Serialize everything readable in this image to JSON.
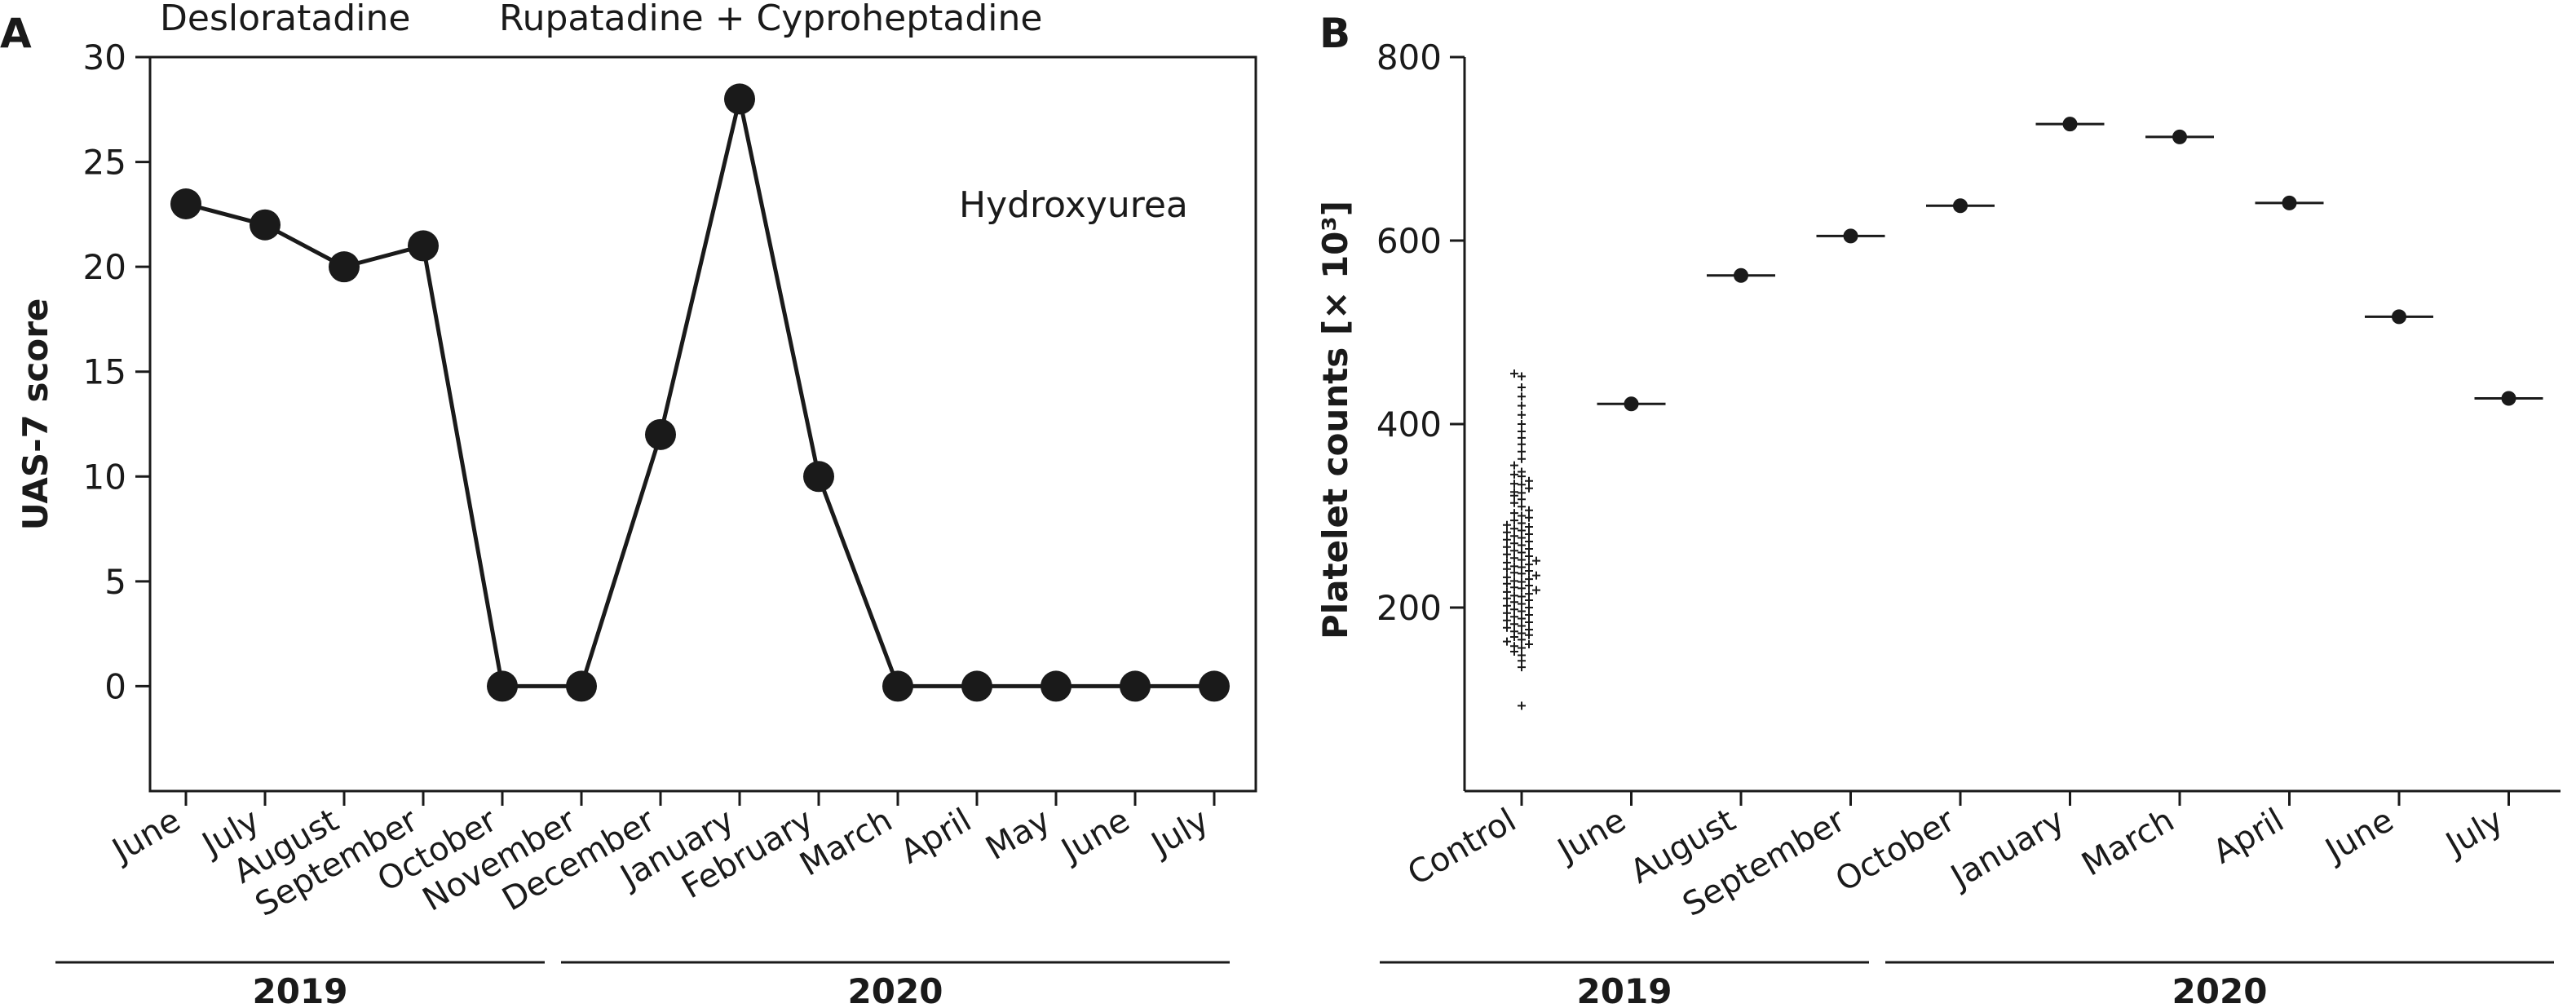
{
  "chart_data": [
    {
      "panel": "A",
      "type": "line",
      "ylabel": "UAS-7 score",
      "xlabel": "",
      "ylim": [
        -5,
        30
      ],
      "yticks": [
        "0",
        "5",
        "10",
        "15",
        "20",
        "25",
        "30"
      ],
      "categories": [
        "June",
        "July",
        "August",
        "September",
        "October",
        "November",
        "December",
        "January",
        "February",
        "March",
        "April",
        "May",
        "June",
        "July"
      ],
      "values": [
        23,
        22,
        20,
        21,
        0,
        0,
        12,
        28,
        10,
        0,
        0,
        0,
        0,
        0
      ],
      "annotations": [
        "Desloratadine",
        "Rupatadine + Cyproheptadine",
        "Hydroxyurea"
      ],
      "years": [
        "2019",
        "2020"
      ]
    },
    {
      "panel": "B",
      "type": "scatter",
      "ylabel": "Platelet counts [× 10³]",
      "xlabel": "",
      "ylim": [
        0,
        800
      ],
      "yticks": [
        "200",
        "400",
        "600",
        "800"
      ],
      "categories": [
        "Control",
        "June",
        "August",
        "September",
        "October",
        "January",
        "March",
        "April",
        "June",
        "July"
      ],
      "values": [
        null,
        422,
        562,
        605,
        638,
        727,
        713,
        641,
        517,
        428
      ],
      "control_points": [
        93,
        135,
        142,
        148,
        152,
        156,
        158,
        160,
        163,
        165,
        168,
        170,
        172,
        174,
        176,
        178,
        180,
        182,
        184,
        186,
        188,
        190,
        192,
        194,
        196,
        198,
        200,
        202,
        204,
        206,
        208,
        210,
        212,
        213,
        215,
        217,
        219,
        221,
        222,
        224,
        226,
        228,
        229,
        231,
        233,
        235,
        237,
        238,
        240,
        242,
        244,
        245,
        247,
        249,
        251,
        252,
        254,
        256,
        258,
        260,
        262,
        264,
        266,
        268,
        270,
        272,
        274,
        276,
        278,
        280,
        282,
        284,
        286,
        288,
        290,
        292,
        295,
        298,
        300,
        303,
        306,
        310,
        314,
        318,
        322,
        326,
        330,
        334,
        338,
        343,
        348,
        355,
        362,
        370,
        378,
        385,
        392,
        400,
        410,
        420,
        430,
        440,
        452,
        455,
        325,
        335,
        345
      ],
      "years": [
        "2019",
        "2020"
      ]
    }
  ]
}
